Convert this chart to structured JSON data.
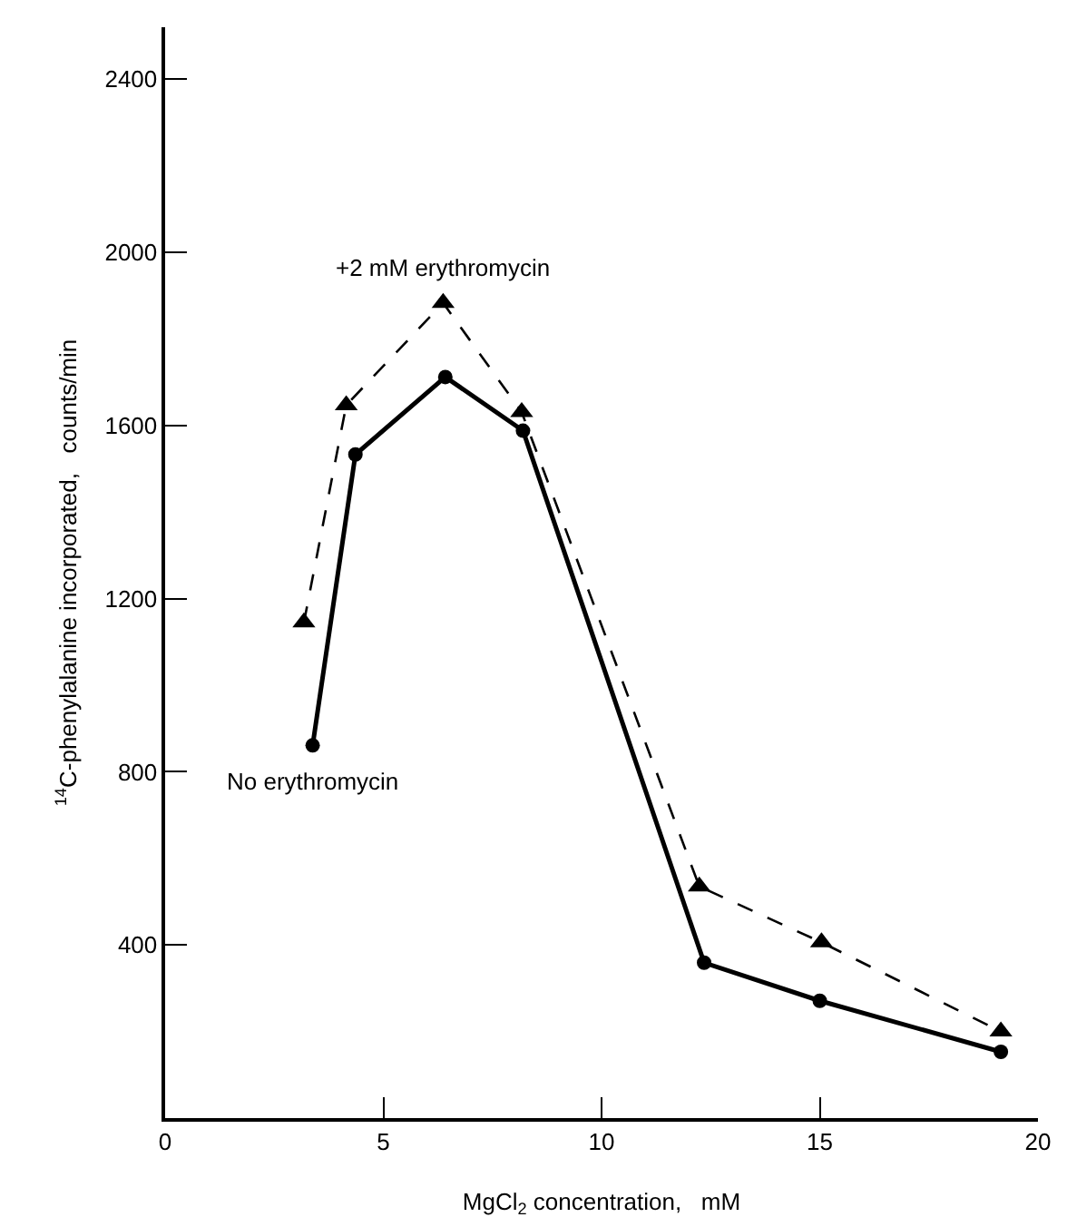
{
  "chart_data": {
    "type": "line",
    "xlabel": "MgCl$_{2}$ concentration,   mM",
    "ylabel": "$^{14}$C-phenylalanine incorporated,   counts/min",
    "xlim": [
      0,
      20
    ],
    "xticks": [
      0,
      5,
      10,
      15,
      20
    ],
    "ylim": [
      0,
      2520
    ],
    "yticks": [
      400,
      800,
      1200,
      1600,
      2000,
      2400
    ],
    "grid": false,
    "legend": false,
    "series": [
      {
        "name": "+2 mM erythromycin",
        "color": "#000000",
        "marker": "triangle",
        "line_style": "dashed",
        "x": [
          3.18,
          4.15,
          6.37,
          8.17,
          12.24,
          15.04,
          19.15
        ],
        "values": [
          1145,
          1647,
          1883,
          1631,
          535,
          406,
          200
        ]
      },
      {
        "name": "No erythromycin",
        "color": "#000000",
        "marker": "circle",
        "line_style": "solid",
        "x": [
          3.38,
          4.36,
          6.42,
          8.2,
          12.35,
          15.0,
          19.15
        ],
        "values": [
          861,
          1533,
          1712,
          1588,
          359,
          271,
          153
        ]
      }
    ]
  }
}
